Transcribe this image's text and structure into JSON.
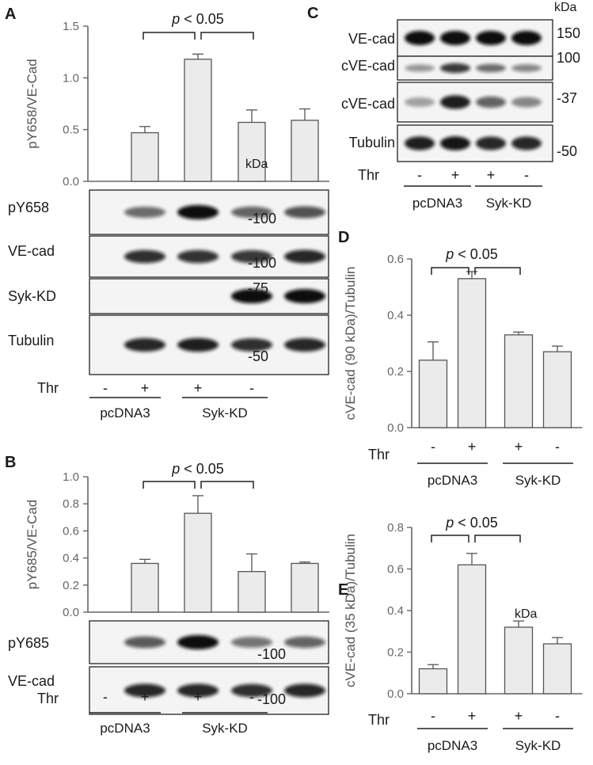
{
  "figure": {
    "panels": [
      {
        "id": "A",
        "letter": "A",
        "chart": {
          "type": "bar",
          "ylabel": "pY658/VE-Cad",
          "ylim": [
            0,
            1.5
          ],
          "yticks": [
            "0.0",
            "0.5",
            "1.0",
            "1.5"
          ],
          "values": [
            0.47,
            1.18,
            0.57,
            0.59
          ],
          "errors": [
            0.06,
            0.05,
            0.12,
            0.11
          ],
          "significance": {
            "text_p": "p",
            "text_rest": " < 0.05"
          }
        },
        "kda_label": "kDa",
        "blots": [
          {
            "label": "pY658",
            "marker": "-100",
            "bands": [
              0.45,
              1.0,
              0.5,
              0.6
            ]
          },
          {
            "label": "VE-cad",
            "marker": "-100",
            "bands": [
              0.8,
              0.78,
              0.75,
              0.85
            ]
          },
          {
            "label": "Syk-KD",
            "marker": "-75",
            "bands": [
              0.0,
              0.0,
              1.0,
              1.0
            ]
          },
          {
            "label": "Tubulin",
            "marker": "-50",
            "bands": [
              0.85,
              0.9,
              0.8,
              0.85
            ]
          }
        ],
        "treatment": {
          "label": "Thr",
          "signs": [
            "-",
            "+",
            "+",
            "-"
          ]
        },
        "groups": [
          "pcDNA3",
          "Syk-KD"
        ]
      },
      {
        "id": "B",
        "letter": "B",
        "chart": {
          "type": "bar",
          "ylabel": "pY685/VE-Cad",
          "ylim": [
            0,
            1.0
          ],
          "yticks": [
            "0.0",
            "0.2",
            "0.4",
            "0.6",
            "0.8",
            "1.0"
          ],
          "values": [
            0.36,
            0.73,
            0.3,
            0.36
          ],
          "errors": [
            0.03,
            0.13,
            0.13,
            0.01
          ],
          "significance": {
            "text_p": "p",
            "text_rest": " < 0.05"
          }
        },
        "kda_label": "kDa",
        "blots": [
          {
            "label": "pY685",
            "marker": "-100",
            "bands": [
              0.55,
              1.0,
              0.4,
              0.5
            ]
          },
          {
            "label": "VE-cad",
            "marker": "-100",
            "bands": [
              0.85,
              0.85,
              0.8,
              0.85
            ]
          }
        ],
        "treatment": {
          "label": "Thr",
          "signs": [
            "-",
            "+",
            "+",
            "-"
          ]
        },
        "groups": [
          "pcDNA3",
          "Syk-KD"
        ]
      },
      {
        "id": "C",
        "letter": "C",
        "kda_label": "kDa",
        "blots": [
          {
            "label": "VE-cad",
            "marker": "150",
            "bands": [
              1.0,
              1.0,
              1.0,
              1.0
            ]
          },
          {
            "label": "cVE-cad",
            "marker": "100",
            "bands": [
              0.2,
              0.75,
              0.45,
              0.3
            ]
          },
          {
            "label": "cVE-cad",
            "marker": "-37",
            "bands": [
              0.15,
              0.9,
              0.5,
              0.3
            ]
          },
          {
            "label": "Tubulin",
            "marker": "-50",
            "bands": [
              0.9,
              0.95,
              0.85,
              0.85
            ]
          }
        ],
        "treatment": {
          "label": "Thr",
          "signs": [
            "-",
            "+",
            "+",
            "-"
          ]
        },
        "groups": [
          "pcDNA3",
          "Syk-KD"
        ]
      },
      {
        "id": "D",
        "letter": "D",
        "chart": {
          "type": "bar",
          "ylabel": "cVE-cad (90 kDa)/Tubulin",
          "ylim": [
            0,
            0.6
          ],
          "yticks": [
            "0.0",
            "0.2",
            "0.4",
            "0.6"
          ],
          "values": [
            0.24,
            0.53,
            0.33,
            0.27
          ],
          "errors": [
            0.065,
            0.025,
            0.01,
            0.02
          ],
          "significance": {
            "text_p": "p",
            "text_rest": " < 0.05"
          }
        },
        "treatment": {
          "label": "Thr",
          "signs": [
            "-",
            "+",
            "+",
            "-"
          ]
        },
        "groups": [
          "pcDNA3",
          "Syk-KD"
        ]
      },
      {
        "id": "E",
        "letter": "E",
        "chart": {
          "type": "bar",
          "ylabel": "cVE-cad (35 kDa)/Tubulin",
          "ylim": [
            0,
            0.8
          ],
          "yticks": [
            "0.0",
            "0.2",
            "0.4",
            "0.6",
            "0.8"
          ],
          "values": [
            0.12,
            0.62,
            0.32,
            0.24
          ],
          "errors": [
            0.02,
            0.055,
            0.03,
            0.03
          ],
          "significance": {
            "text_p": "p",
            "text_rest": " < 0.05"
          }
        },
        "treatment": {
          "label": "Thr",
          "signs": [
            "-",
            "+",
            "+",
            "-"
          ]
        },
        "groups": [
          "pcDNA3",
          "Syk-KD"
        ]
      }
    ]
  },
  "chart_data": [
    {
      "type": "bar",
      "panel": "A",
      "categories": [
        "pcDNA3 -",
        "pcDNA3 +",
        "Syk-KD +",
        "Syk-KD -"
      ],
      "values": [
        0.47,
        1.18,
        0.57,
        0.59
      ],
      "errors": [
        0.06,
        0.05,
        0.12,
        0.11
      ],
      "ylabel": "pY658/VE-Cad",
      "ylim": [
        0,
        1.5
      ]
    },
    {
      "type": "bar",
      "panel": "B",
      "categories": [
        "pcDNA3 -",
        "pcDNA3 +",
        "Syk-KD +",
        "Syk-KD -"
      ],
      "values": [
        0.36,
        0.73,
        0.3,
        0.36
      ],
      "errors": [
        0.03,
        0.13,
        0.13,
        0.01
      ],
      "ylabel": "pY685/VE-Cad",
      "ylim": [
        0,
        1.0
      ]
    },
    {
      "type": "bar",
      "panel": "D",
      "categories": [
        "pcDNA3 -",
        "pcDNA3 +",
        "Syk-KD +",
        "Syk-KD -"
      ],
      "values": [
        0.24,
        0.53,
        0.33,
        0.27
      ],
      "errors": [
        0.065,
        0.025,
        0.01,
        0.02
      ],
      "ylabel": "cVE-cad (90 kDa)/Tubulin",
      "ylim": [
        0,
        0.6
      ]
    },
    {
      "type": "bar",
      "panel": "E",
      "categories": [
        "pcDNA3 -",
        "pcDNA3 +",
        "Syk-KD +",
        "Syk-KD -"
      ],
      "values": [
        0.12,
        0.62,
        0.32,
        0.24
      ],
      "errors": [
        0.02,
        0.055,
        0.03,
        0.03
      ],
      "ylabel": "cVE-cad (35 kDa)/Tubulin",
      "ylim": [
        0,
        0.8
      ]
    }
  ]
}
